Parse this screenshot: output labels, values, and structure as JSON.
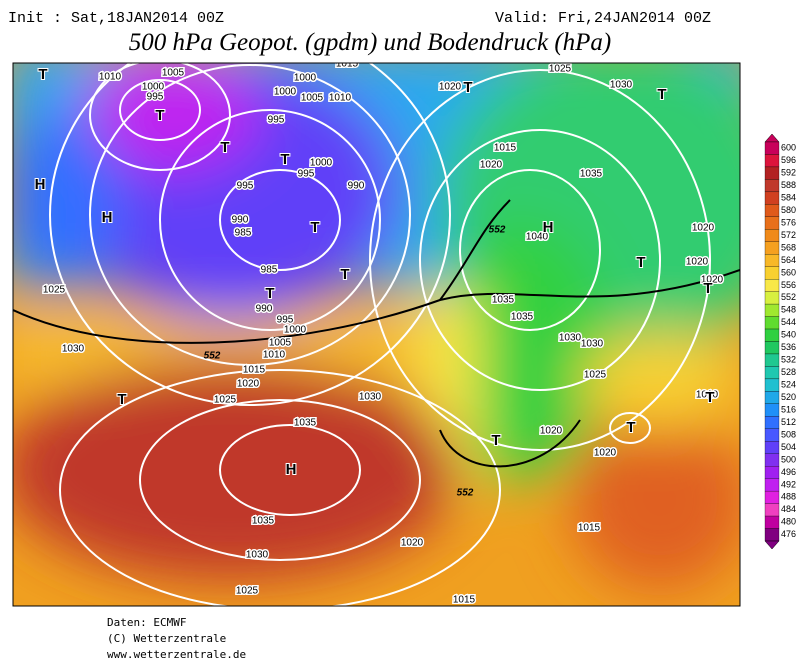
{
  "header": {
    "init": "Init : Sat,18JAN2014 00Z",
    "valid": "Valid: Fri,24JAN2014 00Z",
    "title": "500 hPa Geopot. (gpdm) und Bodendruck (hPa)"
  },
  "legend": {
    "values": [
      600,
      596,
      592,
      588,
      584,
      580,
      576,
      572,
      568,
      564,
      560,
      556,
      552,
      548,
      544,
      540,
      536,
      532,
      528,
      524,
      520,
      516,
      512,
      508,
      504,
      500,
      496,
      492,
      488,
      484,
      480,
      476
    ],
    "colors": [
      "#c8005a",
      "#dc143c",
      "#b22222",
      "#c0392b",
      "#d04020",
      "#e05a1a",
      "#e8701a",
      "#f08a1a",
      "#f5a020",
      "#f8b828",
      "#f8d030",
      "#f8e848",
      "#d8f040",
      "#a0e830",
      "#60dc30",
      "#30d040",
      "#20c860",
      "#20c890",
      "#20c8b0",
      "#20c0d0",
      "#20a8e8",
      "#2090f8",
      "#3070ff",
      "#4858ff",
      "#6040f8",
      "#8030f0",
      "#a020f0",
      "#c020f0",
      "#e020e0",
      "#f040c0",
      "#c000a0",
      "#800080"
    ]
  },
  "map": {
    "isobar_labels": [
      "1010",
      "1005",
      "1000",
      "995",
      "1015",
      "1000",
      "1000",
      "1005",
      "1010",
      "995",
      "1000",
      "995",
      "995",
      "990",
      "990",
      "985",
      "985",
      "990",
      "995",
      "1000",
      "1005",
      "1010",
      "1015",
      "1020",
      "1025",
      "1030",
      "1035",
      "1035",
      "1030",
      "1025",
      "1020",
      "1015",
      "1015",
      "1020",
      "1020",
      "1025",
      "1030",
      "1030",
      "1035",
      "1035",
      "1040",
      "1035",
      "1030",
      "1025",
      "1020",
      "1015",
      "1020",
      "1025",
      "1030",
      "1020",
      "1020",
      "1020",
      "1010"
    ],
    "height_labels": [
      "552",
      "552",
      "552"
    ],
    "centers": [
      "T",
      "T",
      "T",
      "T",
      "H",
      "H",
      "T",
      "T",
      "T",
      "T",
      "T",
      "H",
      "T",
      "T",
      "T",
      "H",
      "T",
      "T",
      "T"
    ]
  },
  "footer": {
    "lines": [
      "Daten: ECMWF",
      "(C) Wetterzentrale",
      "www.wetterzentrale.de"
    ]
  }
}
